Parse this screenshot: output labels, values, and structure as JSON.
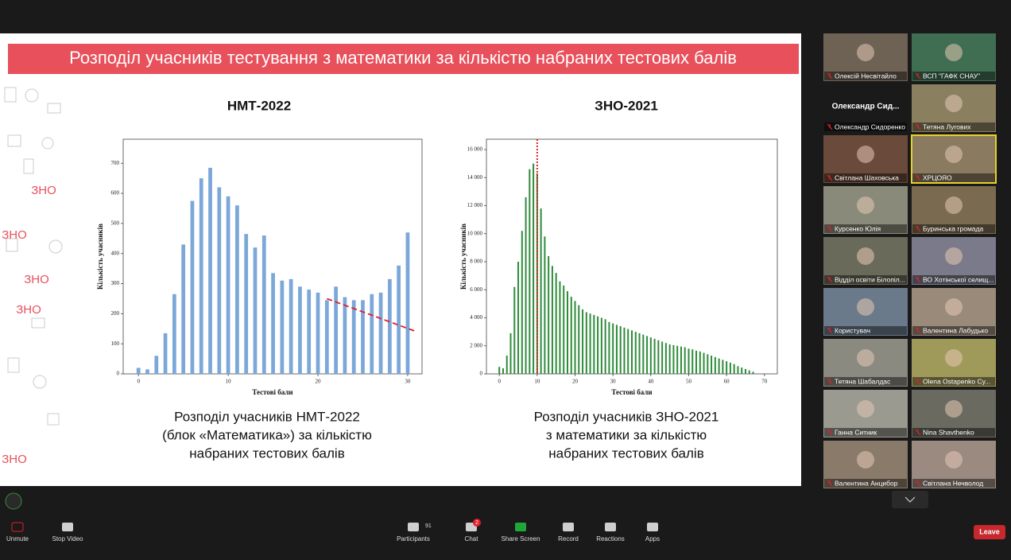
{
  "slide": {
    "title": "Розподіл учасників тестування з математики за кількістю набраних тестових балів",
    "logo_texts": [
      "ЗНО",
      "ЗНО",
      "ЗНО",
      "ЗНО",
      "ЗНО"
    ]
  },
  "chart_data": [
    {
      "type": "bar",
      "title": "НМТ-2022",
      "x_label": "Тестові бали",
      "y_label": "Кількість учасників",
      "x": [
        0,
        1,
        2,
        3,
        4,
        5,
        6,
        7,
        8,
        9,
        10,
        11,
        12,
        13,
        14,
        15,
        16,
        17,
        18,
        19,
        20,
        21,
        22,
        23,
        24,
        25,
        26,
        27,
        28,
        29,
        30
      ],
      "values": [
        20,
        15,
        60,
        135,
        265,
        430,
        575,
        650,
        685,
        620,
        590,
        560,
        465,
        420,
        460,
        335,
        310,
        315,
        290,
        280,
        270,
        245,
        290,
        255,
        245,
        245,
        265,
        270,
        315,
        360,
        470
      ],
      "color": "#7ba7d9",
      "xlim": [
        -1.7,
        31.6
      ],
      "ylim": [
        0,
        780
      ],
      "xticks": [
        0,
        10,
        20,
        30
      ],
      "yticks": [
        0,
        100,
        200,
        300,
        400,
        500,
        600,
        700
      ],
      "trend_line": {
        "x": [
          21,
          31
        ],
        "y": [
          250,
          140
        ],
        "color": "#e0202a"
      },
      "caption": [
        "Розподіл учасників НМТ-2022",
        "(блок «Математика») за кількістю",
        "набраних тестових балів"
      ]
    },
    {
      "type": "bar",
      "title": "ЗНО-2021",
      "x_label": "Тестові бали",
      "y_label": "Кількість учасників",
      "x": [
        0,
        1,
        2,
        3,
        4,
        5,
        6,
        7,
        8,
        9,
        10,
        11,
        12,
        13,
        14,
        15,
        16,
        17,
        18,
        19,
        20,
        21,
        22,
        23,
        24,
        25,
        26,
        27,
        28,
        29,
        30,
        31,
        32,
        33,
        34,
        35,
        36,
        37,
        38,
        39,
        40,
        41,
        42,
        43,
        44,
        45,
        46,
        47,
        48,
        49,
        50,
        51,
        52,
        53,
        54,
        55,
        56,
        57,
        58,
        59,
        60,
        61,
        62,
        63,
        64,
        65,
        66,
        67
      ],
      "values": [
        500,
        400,
        1300,
        2900,
        6200,
        8000,
        10200,
        12600,
        14600,
        15000,
        14300,
        11800,
        9800,
        8400,
        7700,
        7200,
        6600,
        6300,
        5900,
        5500,
        5200,
        4900,
        4600,
        4400,
        4300,
        4200,
        4100,
        4000,
        3900,
        3700,
        3600,
        3500,
        3400,
        3300,
        3200,
        3100,
        3000,
        2900,
        2800,
        2700,
        2600,
        2500,
        2400,
        2300,
        2200,
        2100,
        2050,
        2000,
        1950,
        1900,
        1800,
        1750,
        1650,
        1600,
        1500,
        1400,
        1300,
        1200,
        1100,
        1000,
        900,
        800,
        700,
        550,
        450,
        350,
        250,
        150
      ],
      "color": "#2e8b3a",
      "xlim": [
        -3.4,
        73.4
      ],
      "ylim": [
        0,
        16740
      ],
      "xticks": [
        0,
        10,
        20,
        30,
        40,
        50,
        60,
        70
      ],
      "yticks": [
        0,
        {
          "value": 2000,
          "label": "2 000"
        },
        {
          "value": 4000,
          "label": "4 000"
        },
        {
          "value": 6000,
          "label": "6 000"
        },
        {
          "value": 8000,
          "label": "8 000"
        },
        {
          "value": 10000,
          "label": "10 000"
        },
        {
          "value": 12000,
          "label": "12 000"
        },
        {
          "value": 14000,
          "label": "14 000"
        },
        {
          "value": 16000,
          "label": "16 000"
        }
      ],
      "vline": 10,
      "vline_color": "#e0202a",
      "caption": [
        "Розподіл учасників ЗНО-2021",
        "з математики за кількістю",
        "набраних тестових балів"
      ]
    }
  ],
  "participants": [
    {
      "name": "Олексій Несвітайло"
    },
    {
      "name": "ВСП \"ГАФК СНАУ\""
    },
    {
      "name": "Олександр Сидоренко",
      "display_name": "Олександр  Сид..."
    },
    {
      "name": "Тетяна Лугових"
    },
    {
      "name": "Світлана Шаховська"
    },
    {
      "name": "ХРЦОЯО"
    },
    {
      "name": "Курсенко Юлія"
    },
    {
      "name": "Буринська громада"
    },
    {
      "name": "Відділ освіти Білопіл..."
    },
    {
      "name": "ВО Хотінської селищ..."
    },
    {
      "name": "Користувач"
    },
    {
      "name": "Валентина Лабудько"
    },
    {
      "name": "Тетяна Шабалдас"
    },
    {
      "name": "Olena Ostapenko Су..."
    },
    {
      "name": "Ганна Ситник"
    },
    {
      "name": "Nina Shavthenko"
    },
    {
      "name": "Валентина Анцибор"
    },
    {
      "name": "Світлана Нечволод"
    }
  ],
  "toolbar": {
    "unmute": "Unmute",
    "stop_video": "Stop Video",
    "participants": "Participants",
    "participants_count": 91,
    "chat": "Chat",
    "chat_badge": 2,
    "share_screen": "Share Screen",
    "record": "Record",
    "reactions": "Reactions",
    "apps": "Apps",
    "leave": "Leave"
  }
}
